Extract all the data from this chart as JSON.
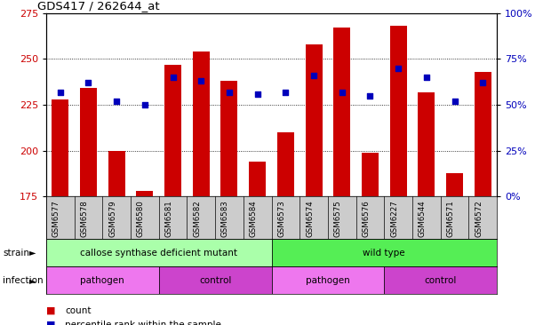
{
  "title": "GDS417 / 262644_at",
  "samples": [
    "GSM6577",
    "GSM6578",
    "GSM6579",
    "GSM6580",
    "GSM6581",
    "GSM6582",
    "GSM6583",
    "GSM6584",
    "GSM6573",
    "GSM6574",
    "GSM6575",
    "GSM6576",
    "GSM6227",
    "GSM6544",
    "GSM6571",
    "GSM6572"
  ],
  "counts": [
    228,
    234,
    200,
    178,
    247,
    254,
    238,
    194,
    210,
    258,
    267,
    199,
    268,
    232,
    188,
    243
  ],
  "percentiles": [
    57,
    62,
    52,
    50,
    65,
    63,
    57,
    56,
    57,
    66,
    57,
    55,
    70,
    65,
    52,
    62
  ],
  "ylim_left": [
    175,
    275
  ],
  "ylim_right": [
    0,
    100
  ],
  "yticks_left": [
    175,
    200,
    225,
    250,
    275
  ],
  "yticks_right": [
    0,
    25,
    50,
    75,
    100
  ],
  "ytick_labels_right": [
    "0%",
    "25%",
    "50%",
    "75%",
    "100%"
  ],
  "bar_color": "#cc0000",
  "dot_color": "#0000bb",
  "grid_color": "#000000",
  "strain_groups": [
    {
      "label": "callose synthase deficient mutant",
      "start": 0,
      "end": 8,
      "color": "#aaffaa"
    },
    {
      "label": "wild type",
      "start": 8,
      "end": 16,
      "color": "#55ee55"
    }
  ],
  "infection_groups": [
    {
      "label": "pathogen",
      "start": 0,
      "end": 4,
      "color": "#ee77ee"
    },
    {
      "label": "control",
      "start": 4,
      "end": 8,
      "color": "#cc44cc"
    },
    {
      "label": "pathogen",
      "start": 8,
      "end": 12,
      "color": "#ee77ee"
    },
    {
      "label": "control",
      "start": 12,
      "end": 16,
      "color": "#cc44cc"
    }
  ],
  "legend_count_color": "#cc0000",
  "legend_dot_color": "#0000bb",
  "left_tick_color": "#cc0000",
  "right_tick_color": "#0000bb",
  "background_color": "#ffffff",
  "plot_bg_color": "#ffffff",
  "tick_area_color": "#cccccc"
}
